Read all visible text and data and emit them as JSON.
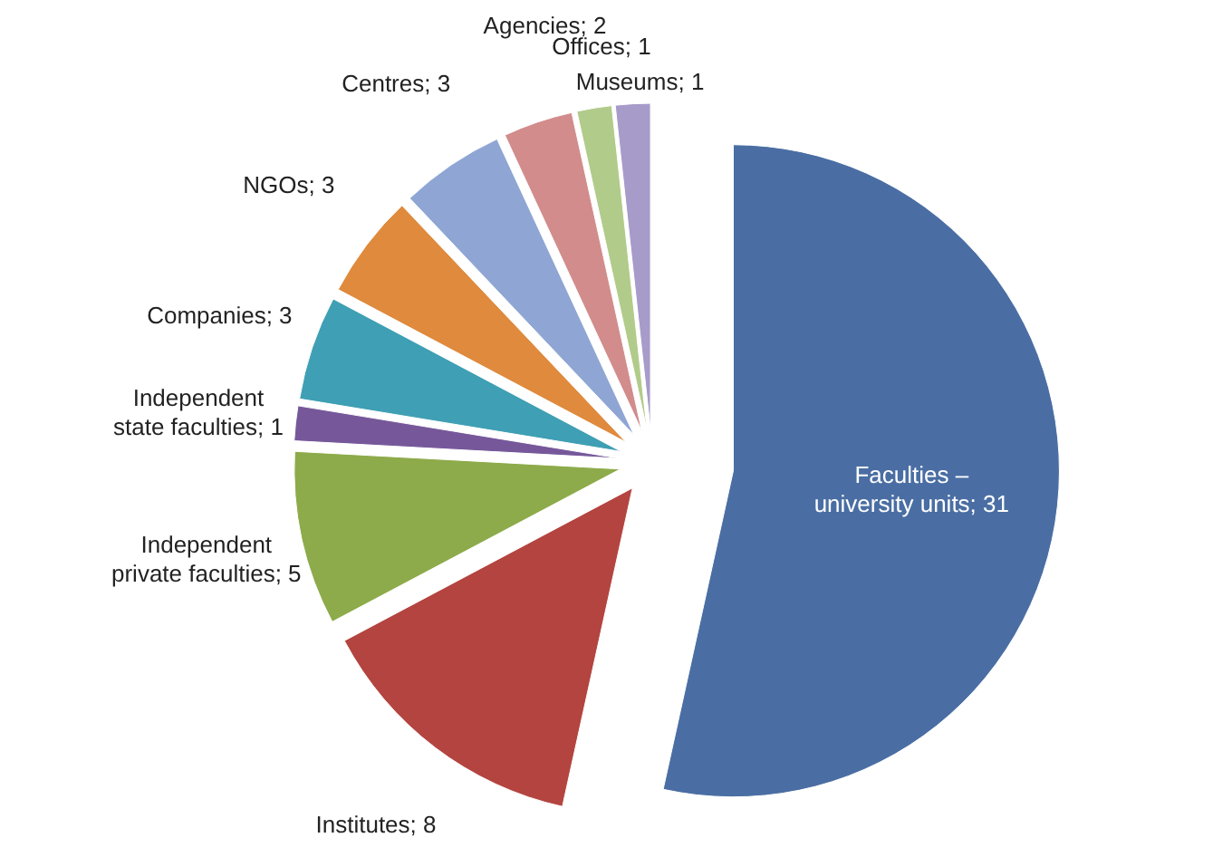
{
  "chart_data": {
    "type": "pie",
    "categories": [
      "Faculties – university units; 31",
      "Institutes; 8",
      "Independent private faculties; 5",
      "Independent state faculties; 1",
      "Companies; 3",
      "NGOs; 3",
      "Centres; 3",
      "Agencies; 2",
      "Offices; 1",
      "Museums; 1"
    ],
    "values": [
      31,
      8,
      5,
      1,
      3,
      3,
      3,
      2,
      1,
      1
    ],
    "colors": [
      "#4a6ea3",
      "#b4443f",
      "#8dab4a",
      "#76589a",
      "#3f9fb4",
      "#df8a3d",
      "#8fa6d4",
      "#d28c8c",
      "#b1cb8a",
      "#a79bc9"
    ]
  }
}
